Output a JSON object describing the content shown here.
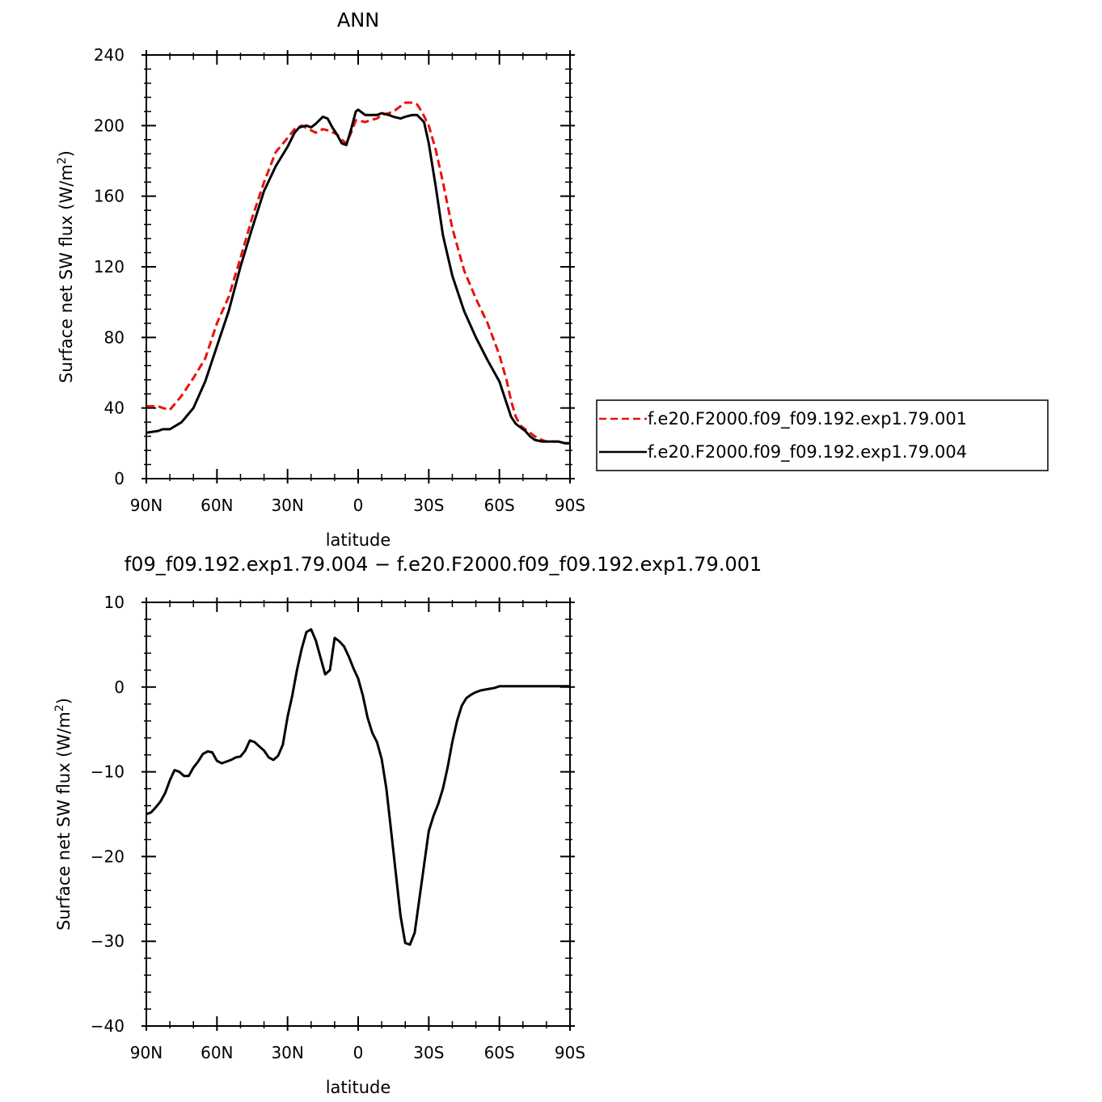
{
  "chart_data": [
    {
      "type": "line",
      "title": "ANN",
      "xlabel": "latitude",
      "ylabel": "Surface net SW flux (W/m",
      "ylabel_sup": "2",
      "ylabel_close": ")",
      "xlim": [
        90,
        -90
      ],
      "ylim": [
        0,
        240
      ],
      "xticks": [
        90,
        60,
        30,
        0,
        -30,
        -60,
        -90
      ],
      "xtick_labels": [
        "90N",
        "60N",
        "30N",
        "0",
        "30S",
        "60S",
        "90S"
      ],
      "yticks": [
        0,
        40,
        80,
        120,
        160,
        200,
        240
      ],
      "ytick_labels": [
        "0",
        "40",
        "80",
        "120",
        "160",
        "200",
        "240"
      ],
      "legend_position": "right",
      "series": [
        {
          "name": "f.e20.F2000.f09_f09.192.exp1.79.001",
          "color": "#e8120c",
          "style": "dashed",
          "x": [
            90,
            85,
            83,
            80,
            75,
            70,
            65,
            60,
            55,
            50,
            45,
            40,
            35,
            30,
            27,
            24,
            21,
            18,
            15,
            12,
            9,
            7,
            5,
            3,
            1,
            0,
            -3,
            -5,
            -8,
            -10,
            -13,
            -15,
            -18,
            -20,
            -23,
            -25,
            -27,
            -30,
            -33,
            -36,
            -40,
            -45,
            -50,
            -55,
            -60,
            -63,
            -65,
            -67,
            -69,
            -71,
            -73,
            -75,
            -78,
            -80,
            -82,
            -85,
            -88,
            -90
          ],
          "values": [
            41,
            41,
            40,
            39,
            47,
            57,
            68,
            88,
            103,
            125,
            148,
            168,
            185,
            193,
            198,
            200,
            198,
            196,
            198,
            197,
            195,
            192,
            190,
            196,
            203,
            203,
            202,
            203,
            204,
            206,
            207,
            208,
            211,
            213,
            213,
            212,
            208,
            200,
            186,
            168,
            142,
            118,
            102,
            88,
            70,
            56,
            44,
            35,
            30,
            28,
            26,
            24,
            22,
            21,
            21,
            21,
            20,
            20
          ]
        },
        {
          "name": "f.e20.F2000.f09_f09.192.exp1.79.004",
          "color": "#000000",
          "style": "solid",
          "x": [
            90,
            85,
            83,
            80,
            75,
            70,
            65,
            60,
            55,
            50,
            45,
            40,
            35,
            30,
            27,
            25,
            22,
            20,
            18,
            15,
            13,
            11,
            9,
            7,
            5,
            3,
            1,
            0,
            -3,
            -5,
            -8,
            -10,
            -13,
            -15,
            -18,
            -20,
            -23,
            -25,
            -28,
            -30,
            -33,
            -36,
            -40,
            -45,
            -50,
            -55,
            -60,
            -63,
            -65,
            -67,
            -69,
            -71,
            -73,
            -75,
            -78,
            -80,
            -82,
            -85,
            -88,
            -90
          ],
          "values": [
            26,
            27,
            28,
            28,
            32,
            40,
            55,
            75,
            95,
            120,
            142,
            163,
            177,
            188,
            196,
            199,
            200,
            199,
            201,
            205,
            204,
            199,
            195,
            190,
            189,
            198,
            208,
            209,
            206,
            206,
            206,
            207,
            206,
            205,
            204,
            205,
            206,
            206,
            202,
            190,
            165,
            138,
            115,
            95,
            80,
            67,
            55,
            43,
            35,
            31,
            29,
            27,
            24,
            22,
            21,
            21,
            21,
            21,
            20,
            20
          ]
        }
      ]
    },
    {
      "type": "line",
      "title": "f09_f09.192.exp1.79.004 − f.e20.F2000.f09_f09.192.exp1.79.001",
      "xlabel": "latitude",
      "ylabel": "Surface net SW flux (W/m",
      "ylabel_sup": "2",
      "ylabel_close": ")",
      "xlim": [
        90,
        -90
      ],
      "ylim": [
        -40,
        10
      ],
      "xticks": [
        90,
        60,
        30,
        0,
        -30,
        -60,
        -90
      ],
      "xtick_labels": [
        "90N",
        "60N",
        "30N",
        "0",
        "30S",
        "60S",
        "90S"
      ],
      "yticks": [
        -40,
        -30,
        -20,
        -10,
        0,
        10
      ],
      "ytick_labels": [
        "−40",
        "−30",
        "−20",
        "−10",
        "0",
        "10"
      ],
      "series": [
        {
          "name": "",
          "color": "#000000",
          "style": "solid",
          "x": [
            90,
            88,
            86,
            84,
            82,
            80,
            78,
            76,
            74,
            72,
            70,
            68,
            66,
            64,
            62,
            60,
            58,
            56,
            54,
            52,
            50,
            48,
            46,
            44,
            42,
            40,
            38,
            36,
            34,
            32,
            30,
            28,
            26,
            24,
            22,
            20,
            18,
            16,
            14,
            12,
            10,
            8,
            6,
            4,
            2,
            0,
            -2,
            -4,
            -6,
            -8,
            -10,
            -12,
            -14,
            -16,
            -18,
            -20,
            -22,
            -24,
            -26,
            -28,
            -30,
            -32,
            -34,
            -36,
            -38,
            -40,
            -42,
            -44,
            -46,
            -48,
            -50,
            -52,
            -54,
            -56,
            -58,
            -60,
            -62,
            -64,
            -66,
            -68,
            -70,
            -72,
            -74,
            -76,
            -78,
            -80,
            -82,
            -84,
            -86,
            -88,
            -90
          ],
          "values": [
            -15,
            -14.8,
            -14.2,
            -13.5,
            -12.5,
            -11,
            -9.8,
            -10,
            -10.5,
            -10.5,
            -9.5,
            -8.8,
            -7.9,
            -7.6,
            -7.7,
            -8.7,
            -9,
            -8.8,
            -8.6,
            -8.3,
            -8.2,
            -7.5,
            -6.3,
            -6.5,
            -7,
            -7.5,
            -8.3,
            -8.6,
            -8.1,
            -6.8,
            -3.5,
            -1,
            2,
            4.5,
            6.5,
            6.8,
            5.5,
            3.5,
            1.5,
            2,
            5.8,
            5.4,
            4.8,
            3.6,
            2.2,
            1,
            -1,
            -3.6,
            -5.4,
            -6.5,
            -8.5,
            -12,
            -17,
            -22,
            -27,
            -30.2,
            -30.4,
            -29,
            -25,
            -21,
            -17,
            -15.2,
            -13.8,
            -12,
            -9.5,
            -6.5,
            -4,
            -2.2,
            -1.3,
            -0.9,
            -0.6,
            -0.4,
            -0.3,
            -0.2,
            -0.1,
            0.1,
            0.1,
            0.1,
            0.1,
            0.1,
            0.1,
            0.1,
            0.1,
            0.1,
            0.1,
            0.1,
            0.1,
            0.1,
            0.1,
            0.1,
            0.1
          ]
        }
      ]
    }
  ]
}
